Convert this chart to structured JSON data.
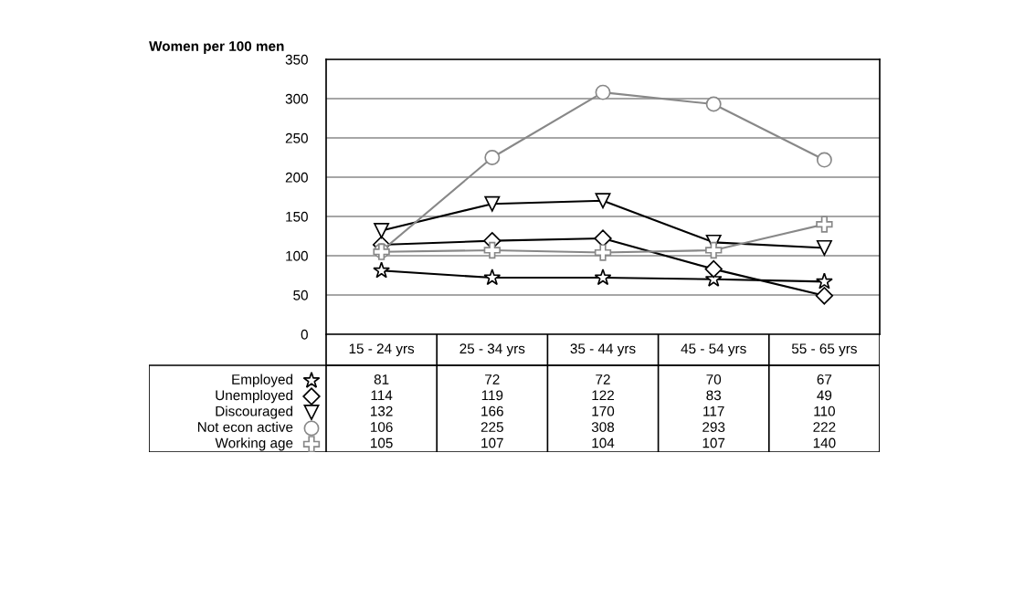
{
  "chart_data": {
    "type": "line",
    "ylabel": "Women per 100 men",
    "categories": [
      "15 - 24 yrs",
      "25 - 34 yrs",
      "35 - 44 yrs",
      "45 - 54 yrs",
      "55 - 65 yrs"
    ],
    "series": [
      {
        "name": "Employed",
        "color": "#000000",
        "marker": "star",
        "values": [
          81,
          72,
          72,
          70,
          67
        ]
      },
      {
        "name": "Unemployed",
        "color": "#000000",
        "marker": "diamond",
        "values": [
          114,
          119,
          122,
          83,
          49
        ]
      },
      {
        "name": "Discouraged",
        "color": "#000000",
        "marker": "triangle",
        "values": [
          132,
          166,
          170,
          117,
          110
        ]
      },
      {
        "name": "Not econ active",
        "color": "#888888",
        "marker": "circle",
        "values": [
          106,
          225,
          308,
          293,
          222
        ]
      },
      {
        "name": "Working age",
        "color": "#888888",
        "marker": "cross",
        "values": [
          105,
          107,
          104,
          107,
          140
        ]
      }
    ],
    "ylim": [
      0,
      350
    ],
    "yticks": [
      0,
      50,
      100,
      150,
      200,
      250,
      300,
      350
    ],
    "grid": "y",
    "legend": "bottom left",
    "data_labels": true,
    "line_style": "solid"
  }
}
